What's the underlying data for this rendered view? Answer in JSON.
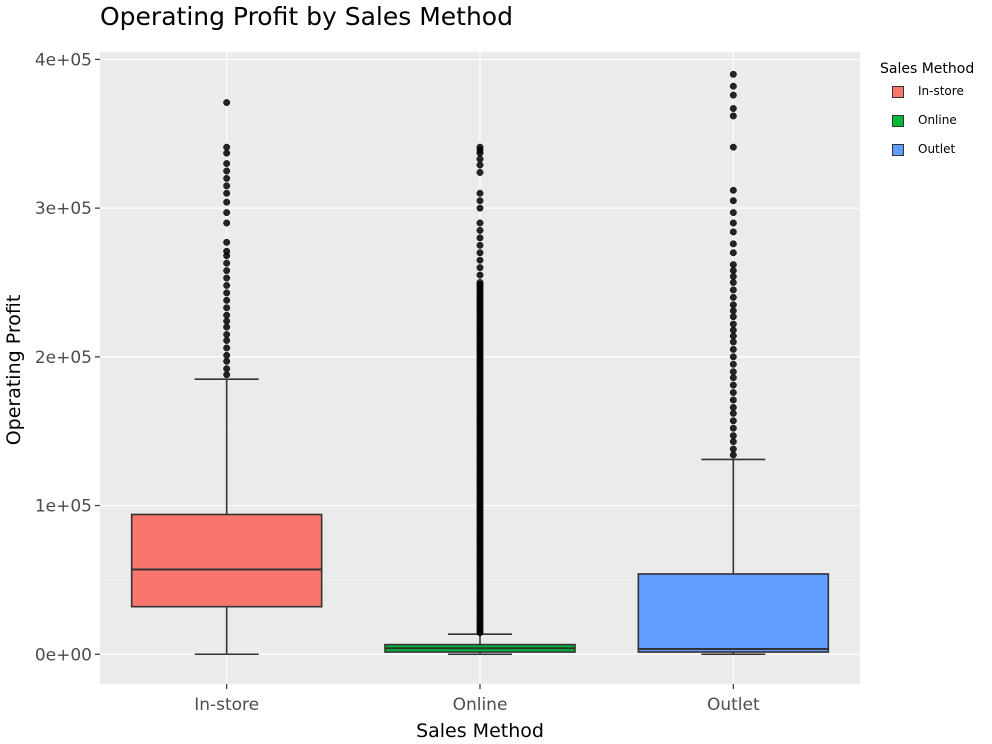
{
  "chart_data": {
    "type": "box",
    "title": "Operating Profit by Sales Method",
    "xlabel": "Sales Method",
    "ylabel": "Operating Profit",
    "categories": [
      "In-store",
      "Online",
      "Outlet"
    ],
    "ylim": [
      -20000,
      405000
    ],
    "y_ticks": [
      0,
      100000,
      200000,
      300000,
      400000
    ],
    "y_tick_labels": [
      "0e+00",
      "1e+05",
      "2e+05",
      "3e+05",
      "4e+05"
    ],
    "grid": true,
    "legend": {
      "title": "Sales Method",
      "position": "right",
      "entries": [
        "In-store",
        "Online",
        "Outlet"
      ]
    },
    "series": [
      {
        "name": "In-store",
        "color": "#F8766D",
        "whisker_low": 0,
        "q1": 32000,
        "median": 57000,
        "q3": 94000,
        "whisker_high": 185000,
        "outliers": [
          188000,
          192000,
          197000,
          201000,
          206000,
          211000,
          215000,
          220000,
          224000,
          228000,
          233000,
          238000,
          243000,
          248000,
          253000,
          258000,
          263000,
          268000,
          271000,
          277000,
          290000,
          297000,
          304000,
          310000,
          315000,
          320000,
          325000,
          330000,
          337000,
          341000,
          371000
        ]
      },
      {
        "name": "Online",
        "color": "#00BA38",
        "whisker_low": 0,
        "q1": 1500,
        "median": 4000,
        "q3": 6500,
        "whisker_high": 13500,
        "outliers_range": [
          14500,
          250000
        ],
        "outliers": [
          255000,
          260000,
          265000,
          270000,
          275000,
          280000,
          285000,
          290000,
          300000,
          305000,
          310000,
          324000,
          329000,
          333000,
          337000,
          339000,
          341000
        ]
      },
      {
        "name": "Outlet",
        "color": "#619CFF",
        "whisker_low": 0,
        "q1": 1500,
        "median": 3500,
        "q3": 54000,
        "whisker_high": 131000,
        "outliers": [
          134000,
          138000,
          143000,
          147000,
          152000,
          157000,
          162000,
          166000,
          171000,
          176000,
          181000,
          186000,
          190000,
          195000,
          200000,
          205000,
          210000,
          214000,
          218000,
          222000,
          227000,
          231000,
          235000,
          240000,
          245000,
          250000,
          254000,
          258000,
          262000,
          270000,
          276000,
          284000,
          290000,
          297000,
          305000,
          312000,
          341000,
          362000,
          367000,
          376000,
          382000,
          390000
        ]
      }
    ]
  }
}
